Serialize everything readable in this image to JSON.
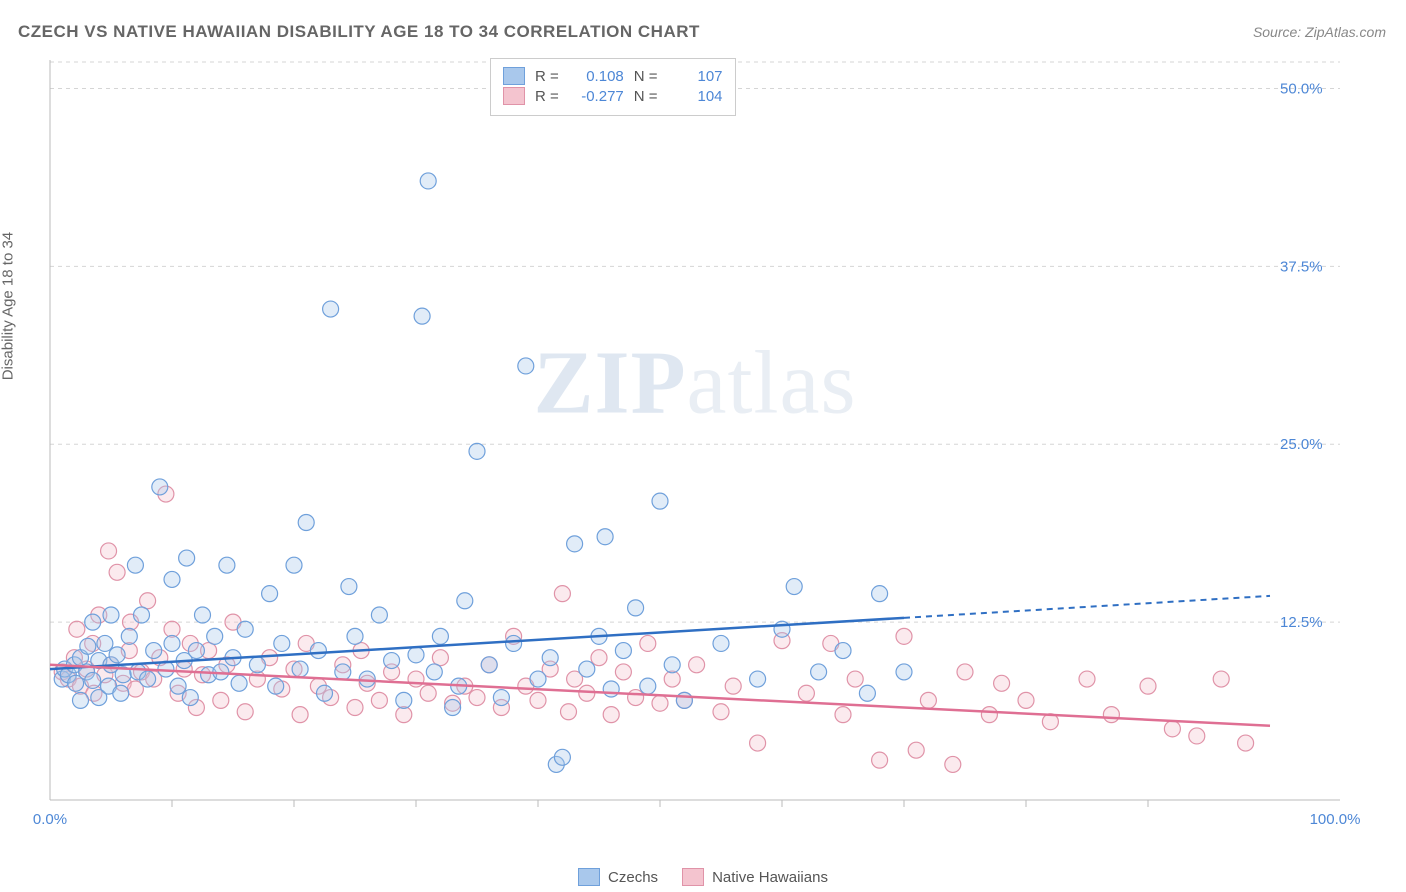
{
  "title": "CZECH VS NATIVE HAWAIIAN DISABILITY AGE 18 TO 34 CORRELATION CHART",
  "source_label": "Source: ZipAtlas.com",
  "y_axis_label": "Disability Age 18 to 34",
  "watermark": {
    "bold": "ZIP",
    "rest": "atlas"
  },
  "chart": {
    "type": "scatter-with-trend",
    "xlim": [
      0,
      100
    ],
    "ylim": [
      0,
      52
    ],
    "x_ticks": [
      0,
      100
    ],
    "x_tick_labels": [
      "0.0%",
      "100.0%"
    ],
    "x_minor_ticks": [
      10,
      20,
      30,
      40,
      50,
      60,
      70,
      80,
      90
    ],
    "y_ticks": [
      12.5,
      25.0,
      37.5,
      50.0
    ],
    "y_tick_labels": [
      "12.5%",
      "25.0%",
      "37.5%",
      "50.0%"
    ],
    "background_color": "#ffffff",
    "grid_color": "#d5d5d5",
    "marker_radius": 8,
    "marker_opacity": 0.35,
    "series": [
      {
        "name": "Czechs",
        "fill": "#a9c8ec",
        "stroke": "#6fa0db",
        "R": "0.108",
        "N": "107",
        "trend": {
          "y_at_x0": 9.2,
          "y_at_x70": 12.8,
          "solid_until_x": 70,
          "color": "#2f6fc3"
        },
        "points": [
          [
            1,
            8.5
          ],
          [
            1.2,
            9.2
          ],
          [
            1.5,
            8.8
          ],
          [
            2,
            9.5
          ],
          [
            2.1,
            8.2
          ],
          [
            2.5,
            10.0
          ],
          [
            2.5,
            7.0
          ],
          [
            3,
            9.0
          ],
          [
            3.1,
            10.8
          ],
          [
            3.5,
            8.4
          ],
          [
            3.5,
            12.5
          ],
          [
            4,
            9.8
          ],
          [
            4,
            7.2
          ],
          [
            4.5,
            11.0
          ],
          [
            4.8,
            8.0
          ],
          [
            5,
            9.5
          ],
          [
            5,
            13.0
          ],
          [
            5.5,
            10.2
          ],
          [
            5.8,
            7.5
          ],
          [
            6,
            8.8
          ],
          [
            6.5,
            11.5
          ],
          [
            7,
            16.5
          ],
          [
            7.2,
            9.0
          ],
          [
            7.5,
            13.0
          ],
          [
            8,
            8.5
          ],
          [
            8.5,
            10.5
          ],
          [
            9,
            22.0
          ],
          [
            9.5,
            9.2
          ],
          [
            10,
            11.0
          ],
          [
            10,
            15.5
          ],
          [
            10.5,
            8.0
          ],
          [
            11,
            9.8
          ],
          [
            11.2,
            17.0
          ],
          [
            11.5,
            7.2
          ],
          [
            12,
            10.5
          ],
          [
            12.5,
            13.0
          ],
          [
            13,
            8.8
          ],
          [
            13.5,
            11.5
          ],
          [
            14,
            9.0
          ],
          [
            14.5,
            16.5
          ],
          [
            15,
            10.0
          ],
          [
            15.5,
            8.2
          ],
          [
            16,
            12.0
          ],
          [
            17,
            9.5
          ],
          [
            18,
            14.5
          ],
          [
            18.5,
            8.0
          ],
          [
            19,
            11.0
          ],
          [
            20,
            16.5
          ],
          [
            20.5,
            9.2
          ],
          [
            21,
            19.5
          ],
          [
            22,
            10.5
          ],
          [
            22.5,
            7.5
          ],
          [
            23,
            34.5
          ],
          [
            24,
            9.0
          ],
          [
            24.5,
            15.0
          ],
          [
            25,
            11.5
          ],
          [
            26,
            8.5
          ],
          [
            27,
            13.0
          ],
          [
            28,
            9.8
          ],
          [
            29,
            7.0
          ],
          [
            30,
            10.2
          ],
          [
            30.5,
            34.0
          ],
          [
            31,
            43.5
          ],
          [
            31.5,
            9.0
          ],
          [
            32,
            11.5
          ],
          [
            33,
            6.5
          ],
          [
            33.5,
            8.0
          ],
          [
            34,
            14.0
          ],
          [
            35,
            24.5
          ],
          [
            36,
            9.5
          ],
          [
            37,
            7.2
          ],
          [
            38,
            11.0
          ],
          [
            39,
            30.5
          ],
          [
            40,
            8.5
          ],
          [
            41,
            10.0
          ],
          [
            41.5,
            2.5
          ],
          [
            42,
            3.0
          ],
          [
            43,
            18.0
          ],
          [
            44,
            9.2
          ],
          [
            45,
            11.5
          ],
          [
            45.5,
            18.5
          ],
          [
            46,
            7.8
          ],
          [
            47,
            10.5
          ],
          [
            48,
            13.5
          ],
          [
            49,
            8.0
          ],
          [
            50,
            21.0
          ],
          [
            51,
            9.5
          ],
          [
            52,
            7.0
          ],
          [
            55,
            11.0
          ],
          [
            58,
            8.5
          ],
          [
            60,
            12.0
          ],
          [
            61,
            15.0
          ],
          [
            63,
            9.0
          ],
          [
            65,
            10.5
          ],
          [
            67,
            7.5
          ],
          [
            68,
            14.5
          ],
          [
            70,
            9.0
          ]
        ]
      },
      {
        "name": "Native Hawaiians",
        "fill": "#f4c4cf",
        "stroke": "#e093a8",
        "R": "-0.277",
        "N": "104",
        "trend": {
          "y_at_x0": 9.5,
          "y_at_x70": 6.5,
          "solid_until_x": 100,
          "color": "#df6f93"
        },
        "points": [
          [
            1,
            9.0
          ],
          [
            1.5,
            8.5
          ],
          [
            2,
            10.0
          ],
          [
            2.2,
            12.0
          ],
          [
            2.5,
            8.0
          ],
          [
            3,
            9.2
          ],
          [
            3.5,
            11.0
          ],
          [
            3.6,
            7.5
          ],
          [
            4,
            13.0
          ],
          [
            4.5,
            8.8
          ],
          [
            4.8,
            17.5
          ],
          [
            5,
            9.5
          ],
          [
            5.5,
            16.0
          ],
          [
            6,
            8.2
          ],
          [
            6.5,
            10.5
          ],
          [
            6.6,
            12.5
          ],
          [
            7,
            7.8
          ],
          [
            7.5,
            9.0
          ],
          [
            8,
            14.0
          ],
          [
            8.5,
            8.5
          ],
          [
            9,
            10.0
          ],
          [
            9.5,
            21.5
          ],
          [
            10,
            12.0
          ],
          [
            10.5,
            7.5
          ],
          [
            11,
            9.2
          ],
          [
            11.5,
            11.0
          ],
          [
            12,
            6.5
          ],
          [
            12.5,
            8.8
          ],
          [
            13,
            10.5
          ],
          [
            14,
            7.0
          ],
          [
            14.5,
            9.5
          ],
          [
            15,
            12.5
          ],
          [
            16,
            6.2
          ],
          [
            17,
            8.5
          ],
          [
            18,
            10.0
          ],
          [
            19,
            7.8
          ],
          [
            20,
            9.2
          ],
          [
            20.5,
            6.0
          ],
          [
            21,
            11.0
          ],
          [
            22,
            8.0
          ],
          [
            23,
            7.2
          ],
          [
            24,
            9.5
          ],
          [
            25,
            6.5
          ],
          [
            25.5,
            10.5
          ],
          [
            26,
            8.2
          ],
          [
            27,
            7.0
          ],
          [
            28,
            9.0
          ],
          [
            29,
            6.0
          ],
          [
            30,
            8.5
          ],
          [
            31,
            7.5
          ],
          [
            32,
            10.0
          ],
          [
            33,
            6.8
          ],
          [
            34,
            8.0
          ],
          [
            35,
            7.2
          ],
          [
            36,
            9.5
          ],
          [
            37,
            6.5
          ],
          [
            38,
            11.5
          ],
          [
            39,
            8.0
          ],
          [
            40,
            7.0
          ],
          [
            41,
            9.2
          ],
          [
            42,
            14.5
          ],
          [
            42.5,
            6.2
          ],
          [
            43,
            8.5
          ],
          [
            44,
            7.5
          ],
          [
            45,
            10.0
          ],
          [
            46,
            6.0
          ],
          [
            47,
            9.0
          ],
          [
            48,
            7.2
          ],
          [
            49,
            11.0
          ],
          [
            50,
            6.8
          ],
          [
            51,
            8.5
          ],
          [
            52,
            7.0
          ],
          [
            53,
            9.5
          ],
          [
            55,
            6.2
          ],
          [
            56,
            8.0
          ],
          [
            58,
            4.0
          ],
          [
            60,
            11.2
          ],
          [
            62,
            7.5
          ],
          [
            64,
            11.0
          ],
          [
            65,
            6.0
          ],
          [
            66,
            8.5
          ],
          [
            68,
            2.8
          ],
          [
            70,
            11.5
          ],
          [
            71,
            3.5
          ],
          [
            72,
            7.0
          ],
          [
            74,
            2.5
          ],
          [
            75,
            9.0
          ],
          [
            77,
            6.0
          ],
          [
            78,
            8.2
          ],
          [
            80,
            7.0
          ],
          [
            82,
            5.5
          ],
          [
            85,
            8.5
          ],
          [
            87,
            6.0
          ],
          [
            90,
            8.0
          ],
          [
            92,
            5.0
          ],
          [
            94,
            4.5
          ],
          [
            96,
            8.5
          ],
          [
            98,
            4.0
          ]
        ]
      }
    ],
    "legend_labels": {
      "series1": "Czechs",
      "series2": "Native Hawaiians"
    },
    "stats_labels": {
      "R": "R =",
      "N": "N ="
    }
  }
}
